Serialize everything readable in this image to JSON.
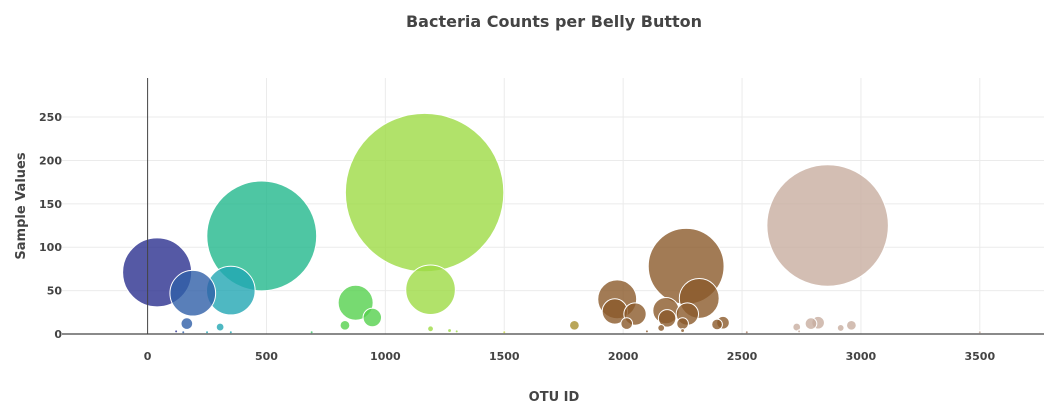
{
  "chart_data": {
    "type": "scatter",
    "title": "Bacteria Counts per Belly Button",
    "xlabel": "OTU ID",
    "ylabel": "Sample Values",
    "xlim": [
      -360,
      3770
    ],
    "ylim": [
      0,
      295
    ],
    "x_ticks": [
      0,
      500,
      1000,
      1500,
      2000,
      2500,
      3000,
      3500
    ],
    "y_ticks": [
      0,
      50,
      100,
      150,
      200,
      250
    ],
    "grid": true,
    "legend": "none",
    "marker_size": "proportional to sample value",
    "points": [
      {
        "x": 40,
        "y": 71,
        "color": "#2b2f8f"
      },
      {
        "x": 190,
        "y": 47,
        "color": "#2f5fa8"
      },
      {
        "x": 350,
        "y": 50,
        "color": "#22a6b3"
      },
      {
        "x": 480,
        "y": 113,
        "color": "#22b88c"
      },
      {
        "x": 875,
        "y": 36,
        "color": "#55d14d"
      },
      {
        "x": 945,
        "y": 19,
        "color": "#55d14d"
      },
      {
        "x": 830,
        "y": 10,
        "color": "#55d14d"
      },
      {
        "x": 1165,
        "y": 163,
        "color": "#9edb45"
      },
      {
        "x": 1190,
        "y": 51,
        "color": "#9edb45"
      },
      {
        "x": 165,
        "y": 12,
        "color": "#2f5fa8"
      },
      {
        "x": 305,
        "y": 8,
        "color": "#22a6b3"
      },
      {
        "x": 1795,
        "y": 10,
        "color": "#a89030"
      },
      {
        "x": 1975,
        "y": 40,
        "color": "#8b5a2b"
      },
      {
        "x": 1965,
        "y": 26,
        "color": "#8b5a2b"
      },
      {
        "x": 2050,
        "y": 23,
        "color": "#8b5a2b"
      },
      {
        "x": 2015,
        "y": 12,
        "color": "#8b5a2b"
      },
      {
        "x": 2180,
        "y": 27,
        "color": "#8b5a2b"
      },
      {
        "x": 2185,
        "y": 18,
        "color": "#8b5a2b"
      },
      {
        "x": 2265,
        "y": 78,
        "color": "#8b5a2b"
      },
      {
        "x": 2320,
        "y": 41,
        "color": "#8b5a2b"
      },
      {
        "x": 2270,
        "y": 23,
        "color": "#8b5a2b"
      },
      {
        "x": 2250,
        "y": 12,
        "color": "#8b5a2b"
      },
      {
        "x": 2160,
        "y": 7,
        "color": "#8b5a2b"
      },
      {
        "x": 2395,
        "y": 11,
        "color": "#8b5a2b"
      },
      {
        "x": 2420,
        "y": 13,
        "color": "#8b5a2b"
      },
      {
        "x": 2860,
        "y": 125,
        "color": "#c8aea0"
      },
      {
        "x": 2790,
        "y": 12,
        "color": "#c8aea0"
      },
      {
        "x": 2820,
        "y": 13,
        "color": "#c8aea0"
      },
      {
        "x": 2960,
        "y": 10,
        "color": "#c8aea0"
      },
      {
        "x": 2730,
        "y": 8,
        "color": "#c8aea0"
      },
      {
        "x": 2915,
        "y": 7,
        "color": "#c8aea0"
      },
      {
        "x": 1190,
        "y": 6,
        "color": "#9edb45"
      },
      {
        "x": 1270,
        "y": 4,
        "color": "#9edb45"
      },
      {
        "x": 1300,
        "y": 3,
        "color": "#9edb45"
      },
      {
        "x": 120,
        "y": 3,
        "color": "#2b2f8f"
      },
      {
        "x": 150,
        "y": 2,
        "color": "#2f5fa8"
      },
      {
        "x": 250,
        "y": 2,
        "color": "#22a6b3"
      },
      {
        "x": 350,
        "y": 2,
        "color": "#22a6b3"
      },
      {
        "x": 690,
        "y": 2,
        "color": "#3ec46a"
      },
      {
        "x": 1500,
        "y": 2,
        "color": "#c9d84a"
      },
      {
        "x": 2100,
        "y": 3,
        "color": "#8b5a2b"
      },
      {
        "x": 2250,
        "y": 4,
        "color": "#8b5a2b"
      },
      {
        "x": 2520,
        "y": 2,
        "color": "#a98068"
      },
      {
        "x": 2740,
        "y": 3,
        "color": "#c8aea0"
      },
      {
        "x": 3500,
        "y": 2,
        "color": "#c8aea0"
      }
    ]
  }
}
